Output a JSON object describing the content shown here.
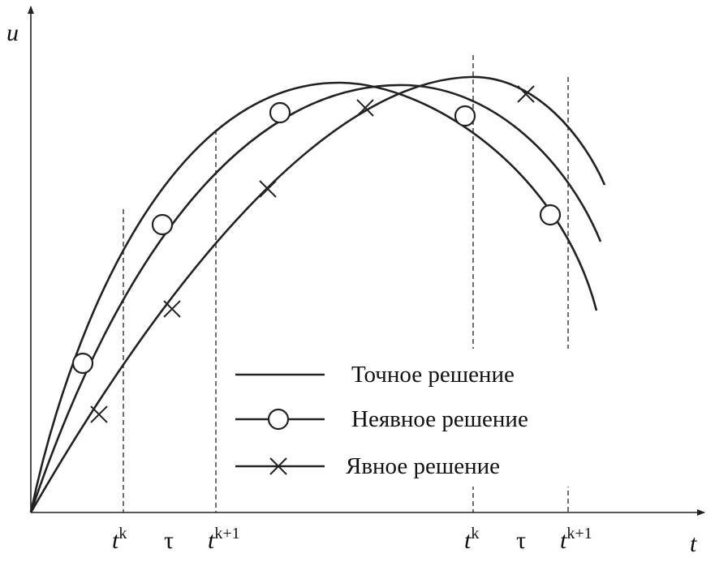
{
  "axes": {
    "y_label": "u",
    "x_label": "t"
  },
  "ticks": [
    {
      "base": "t",
      "sup": "k"
    },
    {
      "base": "τ"
    },
    {
      "base": "t",
      "sup": "k+1"
    },
    {
      "base": "t",
      "sup": "k"
    },
    {
      "base": "τ"
    },
    {
      "base": "t",
      "sup": "k+1"
    }
  ],
  "legend": [
    "Точное решение",
    "Неявное решение",
    "Явное решение"
  ]
}
